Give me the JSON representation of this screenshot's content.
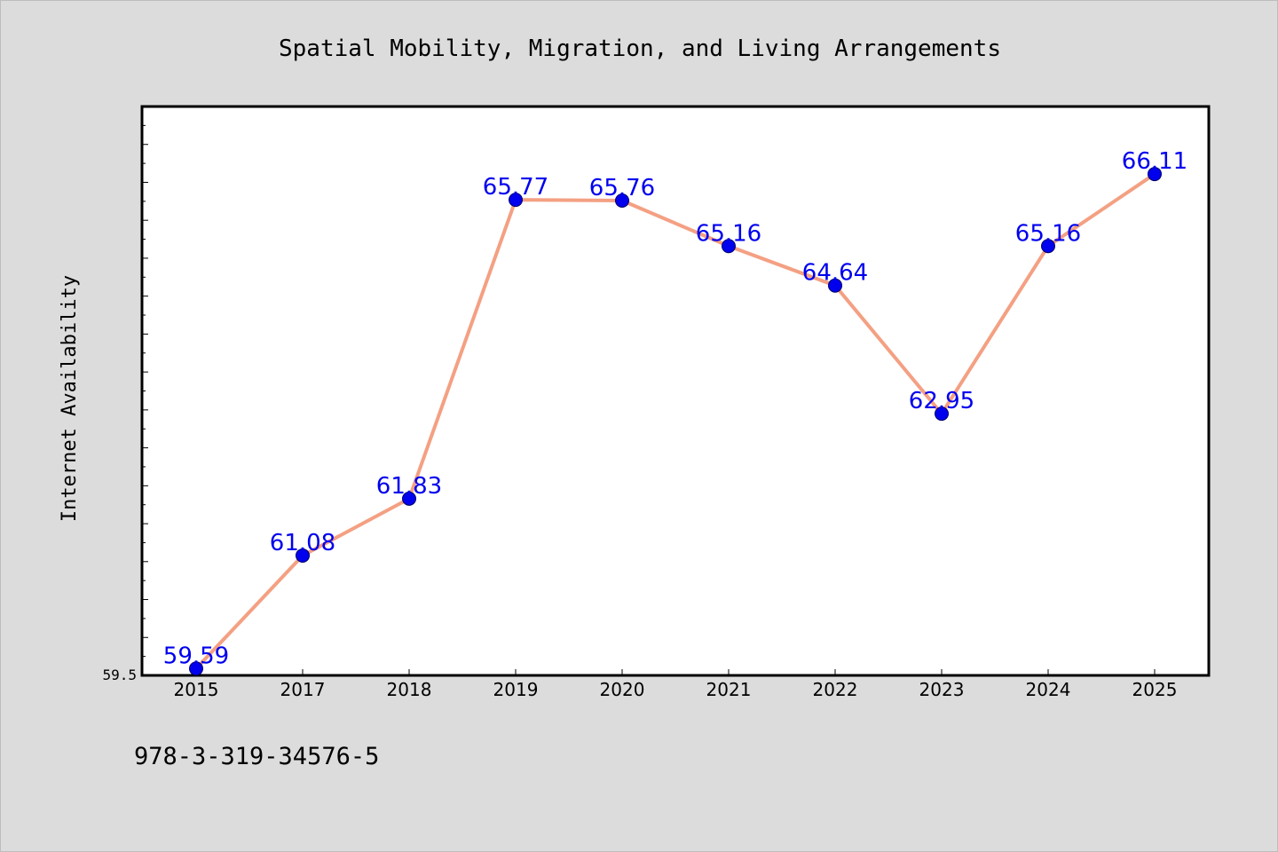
{
  "chart_data": {
    "type": "line",
    "title": "Spatial Mobility, Migration, and Living Arrangements",
    "xlabel": "",
    "ylabel": "Internet Availability",
    "categories": [
      "2015",
      "2017",
      "2018",
      "2019",
      "2020",
      "2021",
      "2022",
      "2023",
      "2024",
      "2025"
    ],
    "values": [
      59.59,
      61.08,
      61.83,
      65.77,
      65.76,
      65.16,
      64.64,
      62.95,
      65.16,
      66.11
    ],
    "data_labels": [
      "59.59",
      "61.08",
      "61.83",
      "65.77",
      "65.76",
      "65.16",
      "64.64",
      "62.95",
      "65.16",
      "66.11"
    ],
    "ylim": [
      59.5,
      67.0
    ],
    "y_tick_labels": [
      "59.5"
    ],
    "grid": false,
    "legend": "none",
    "colors": {
      "line": "#f4a083",
      "marker": "#0000ee",
      "data_label": "#0000ee",
      "plot_background": "#ffffff",
      "page_background": "#dcdcdc"
    }
  },
  "footer": {
    "code": "978-3-319-34576-5"
  }
}
